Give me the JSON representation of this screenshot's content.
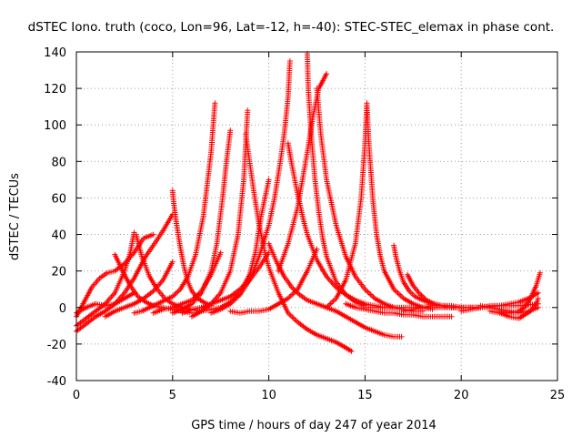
{
  "chart_data": {
    "type": "scatter",
    "title": "dSTEC Iono. truth (coco, Lon=96, Lat=-12, h=-40): STEC-STEC_elemax in phase cont.",
    "xlabel": "GPS time / hours of day 247 of year 2014",
    "ylabel": "dSTEC  / TECUs",
    "xlim": [
      0,
      25
    ],
    "ylim": [
      -40,
      140
    ],
    "xticks": [
      0,
      5,
      10,
      15,
      20,
      25
    ],
    "yticks": [
      -40,
      -20,
      0,
      20,
      40,
      60,
      80,
      100,
      120,
      140
    ],
    "grid": true,
    "marker": "+",
    "series_color": "#ff0000",
    "series": [
      {
        "x": [
          0.0,
          0.5,
          1.0,
          1.5,
          2.0,
          2.5,
          3.0,
          3.3,
          3.6,
          4.0,
          4.5,
          5.0
        ],
        "y": [
          -13,
          -9,
          -5,
          -2,
          2,
          8,
          16,
          22,
          28,
          34,
          42,
          51
        ]
      },
      {
        "x": [
          0.0,
          0.4,
          0.8,
          1.2,
          1.6,
          2.0,
          2.5,
          3.0,
          3.5,
          4.0
        ],
        "y": [
          -5,
          3,
          11,
          16,
          19,
          20,
          24,
          30,
          38,
          40
        ]
      },
      {
        "x": [
          2.0,
          2.4,
          2.8,
          3.2,
          3.6,
          4.0,
          4.5,
          5.0,
          5.5,
          6.0
        ],
        "y": [
          29,
          20,
          12,
          6,
          3,
          1,
          0,
          -1,
          -2,
          -3
        ]
      },
      {
        "x": [
          0.0,
          0.5,
          1.0,
          1.5,
          2.0,
          2.5,
          2.8,
          3.0
        ],
        "y": [
          -10,
          -6,
          -2,
          2,
          8,
          20,
          30,
          41
        ]
      },
      {
        "x": [
          0.0,
          0.5,
          1.0,
          1.5,
          2.0,
          2.5,
          3.0
        ],
        "y": [
          -3,
          0,
          2,
          1,
          2,
          5,
          8
        ]
      },
      {
        "x": [
          3.1,
          3.4,
          3.8,
          4.2,
          4.6,
          5.0,
          5.5,
          6.0,
          6.5
        ],
        "y": [
          40,
          28,
          17,
          10,
          5,
          2,
          0,
          -1,
          -2
        ]
      },
      {
        "x": [
          1.5,
          2.0,
          2.5,
          3.0,
          3.5,
          4.0,
          4.5,
          5.0
        ],
        "y": [
          -5,
          -2,
          0,
          2,
          5,
          9,
          15,
          25
        ]
      },
      {
        "x": [
          5.0,
          5.05,
          5.2,
          5.4,
          5.6,
          5.8,
          6.0,
          6.3,
          6.6,
          7.0
        ],
        "y": [
          64,
          58,
          46,
          33,
          22,
          14,
          9,
          5,
          3,
          1
        ]
      },
      {
        "x": [
          3.0,
          3.4,
          3.8,
          4.2,
          4.6,
          5.0,
          5.4,
          5.8,
          6.2,
          6.6,
          7.0,
          7.2
        ],
        "y": [
          -3,
          -2,
          0,
          2,
          4,
          6,
          10,
          17,
          29,
          50,
          85,
          112
        ]
      },
      {
        "x": [
          5.0,
          5.5,
          6.0,
          6.5,
          7.0,
          7.3,
          7.6,
          7.8,
          8.0
        ],
        "y": [
          -3,
          -1,
          2,
          8,
          20,
          35,
          60,
          80,
          97
        ]
      },
      {
        "x": [
          4.0,
          4.5,
          5.0,
          5.5,
          6.0,
          6.5,
          7.0,
          7.5
        ],
        "y": [
          -3,
          -1,
          0,
          2,
          4,
          9,
          18,
          30
        ]
      },
      {
        "x": [
          6.0,
          6.5,
          7.0,
          7.5,
          8.0,
          8.4,
          8.7,
          8.9
        ],
        "y": [
          -5,
          -2,
          2,
          8,
          20,
          40,
          70,
          108
        ]
      },
      {
        "x": [
          6.5,
          7.0,
          7.5,
          8.0,
          8.5,
          9.0,
          9.3,
          9.6,
          10.0
        ],
        "y": [
          -2,
          -1,
          0,
          3,
          8,
          18,
          30,
          50,
          70
        ]
      },
      {
        "x": [
          8.8,
          9.0,
          9.2,
          9.5,
          9.8,
          10.0,
          10.5,
          11.0,
          11.5,
          12.0,
          12.5,
          13.0,
          13.5,
          14.0,
          14.3
        ],
        "y": [
          95,
          80,
          65,
          45,
          30,
          22,
          8,
          -3,
          -8,
          -12,
          -15,
          -17,
          -19,
          -22,
          -24
        ]
      },
      {
        "x": [
          5.5,
          6.0,
          6.5,
          7.0,
          7.5,
          8.0,
          8.5,
          9.0,
          9.5,
          10.0
        ],
        "y": [
          -3,
          -1,
          0,
          2,
          4,
          6,
          10,
          15,
          22,
          30
        ]
      },
      {
        "x": [
          7.0,
          7.5,
          8.0,
          8.5,
          9.0,
          9.5,
          10.0,
          10.3,
          10.6,
          10.8,
          11.0,
          11.1
        ],
        "y": [
          -3,
          -1,
          2,
          7,
          15,
          28,
          45,
          60,
          80,
          95,
          115,
          135
        ]
      },
      {
        "x": [
          8.0,
          8.5,
          9.0,
          9.5,
          10.0,
          10.5,
          11.0,
          11.5,
          12.0,
          12.5
        ],
        "y": [
          -2,
          -3,
          -2,
          -2,
          -1,
          2,
          5,
          10,
          20,
          32
        ]
      },
      {
        "x": [
          10.0,
          10.4,
          10.8,
          11.2,
          11.6,
          12.0,
          12.5,
          13.0,
          13.5,
          14.0,
          14.5,
          15.0,
          15.5,
          16.0,
          16.5,
          16.9
        ],
        "y": [
          35,
          25,
          17,
          11,
          7,
          4,
          2,
          0,
          -2,
          -5,
          -8,
          -11,
          -13,
          -15,
          -16,
          -16
        ]
      },
      {
        "x": [
          10.5,
          11.0,
          11.5,
          12.0,
          12.3,
          12.6,
          13.0
        ],
        "y": [
          20,
          35,
          55,
          85,
          105,
          120,
          128
        ]
      },
      {
        "x": [
          12.0,
          12.05,
          12.2,
          12.4,
          12.6,
          12.8,
          13.0,
          13.5,
          14.0,
          14.5,
          15.0
        ],
        "y": [
          139,
          120,
          95,
          70,
          52,
          38,
          28,
          14,
          7,
          3,
          1
        ]
      },
      {
        "x": [
          11.0,
          11.2,
          11.5,
          11.8,
          12.0,
          12.5,
          13.0,
          13.5,
          14.0,
          14.5,
          15.0,
          15.5,
          16.0
        ],
        "y": [
          90,
          78,
          62,
          48,
          40,
          26,
          17,
          11,
          7,
          4,
          2,
          1,
          0
        ]
      },
      {
        "x": [
          12.5,
          12.7,
          13.0,
          13.5,
          14.0,
          14.5,
          15.0,
          15.5,
          16.0,
          16.5,
          17.0,
          17.5,
          18.0
        ],
        "y": [
          120,
          95,
          70,
          45,
          28,
          17,
          10,
          5,
          2,
          0,
          -1,
          -2,
          -2
        ]
      },
      {
        "x": [
          13.0,
          13.5,
          14.0,
          14.5,
          14.8,
          15.0,
          15.1
        ],
        "y": [
          0,
          5,
          15,
          35,
          60,
          90,
          112
        ]
      },
      {
        "x": [
          15.1,
          15.2,
          15.4,
          15.6,
          15.8,
          16.0,
          16.5,
          17.0,
          17.5,
          18.0,
          18.5
        ],
        "y": [
          110,
          90,
          60,
          40,
          28,
          20,
          10,
          5,
          2,
          0,
          -1
        ]
      },
      {
        "x": [
          14.0,
          14.5,
          15.0,
          15.5,
          16.0,
          16.5,
          17.0,
          17.5,
          18.0,
          18.5,
          19.0,
          19.5
        ],
        "y": [
          2,
          0,
          -1,
          -2,
          -3,
          -3,
          -4,
          -4,
          -5,
          -5,
          -5,
          -5
        ]
      },
      {
        "x": [
          16.5,
          16.6,
          16.8,
          17.0,
          17.3,
          17.6,
          18.0,
          18.5,
          19.0,
          19.5,
          20.0
        ],
        "y": [
          34,
          28,
          20,
          14,
          9,
          6,
          4,
          2,
          1,
          0,
          0
        ]
      },
      {
        "x": [
          17.0,
          17.5,
          18.0,
          18.5,
          19.0,
          19.5,
          20.0,
          20.5,
          21.0
        ],
        "y": [
          -2,
          -1,
          0,
          1,
          1,
          1,
          0,
          0,
          0
        ]
      },
      {
        "x": [
          17.2,
          17.5,
          17.8,
          18.2,
          18.6,
          19.0,
          19.5,
          20.0,
          20.5,
          21.0
        ],
        "y": [
          18,
          12,
          8,
          4,
          2,
          1,
          0,
          0,
          0,
          0
        ]
      },
      {
        "x": [
          15.0,
          16.0,
          17.0,
          18.0,
          19.0,
          20.0,
          21.0,
          22.0,
          23.0,
          24.0
        ],
        "y": [
          0,
          0,
          0,
          0,
          0,
          0,
          0,
          1,
          1,
          2
        ]
      },
      {
        "x": [
          20.0,
          20.5,
          21.0,
          21.5,
          22.0,
          22.5,
          23.0,
          23.5,
          24.0
        ],
        "y": [
          -2,
          -1,
          0,
          1,
          1,
          2,
          3,
          5,
          8
        ]
      },
      {
        "x": [
          21.5,
          22.0,
          22.5,
          23.0,
          23.3,
          23.6,
          23.9,
          24.0
        ],
        "y": [
          -2,
          -3,
          -5,
          -6,
          -4,
          -2,
          2,
          5
        ]
      },
      {
        "x": [
          22.0,
          22.5,
          23.0,
          23.3,
          23.6,
          23.9,
          24.1
        ],
        "y": [
          -2,
          -3,
          -2,
          0,
          5,
          12,
          19
        ]
      },
      {
        "x": [
          21.0,
          21.5,
          22.0,
          22.5,
          23.0,
          23.5,
          24.0
        ],
        "y": [
          1,
          0,
          -1,
          -2,
          -3,
          -2,
          0
        ]
      }
    ]
  }
}
